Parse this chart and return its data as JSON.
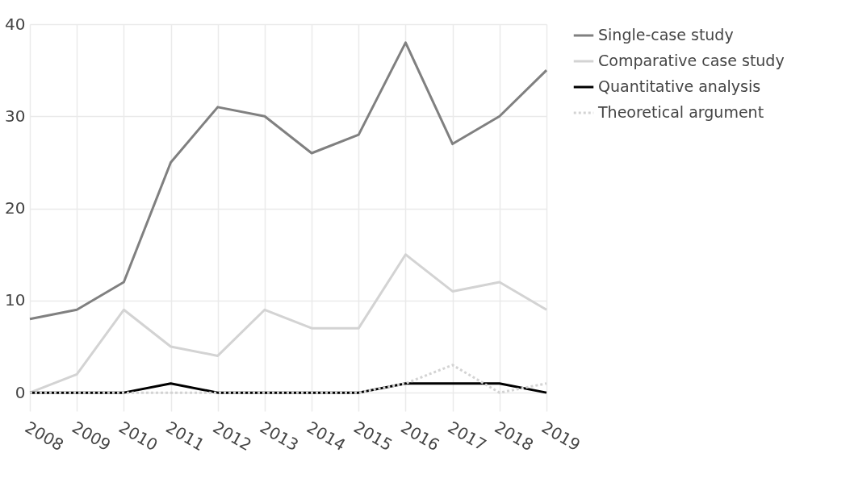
{
  "chart_data": {
    "type": "line",
    "categories": [
      "2008",
      "2009",
      "2010",
      "2011",
      "2012",
      "2013",
      "2014",
      "2015",
      "2016",
      "2017",
      "2018",
      "2019"
    ],
    "series": [
      {
        "name": "Single-case study",
        "color": "#808080",
        "line_style": "solid",
        "values": [
          8,
          9,
          12,
          25,
          31,
          30,
          26,
          28,
          38,
          27,
          30,
          35
        ]
      },
      {
        "name": "Comparative case study",
        "color": "#d3d3d3",
        "line_style": "solid",
        "values": [
          0,
          2,
          9,
          5,
          4,
          9,
          7,
          7,
          15,
          11,
          12,
          9
        ]
      },
      {
        "name": "Quantitative analysis",
        "color": "#000000",
        "line_style": "solid",
        "values": [
          0,
          0,
          0,
          1,
          0,
          0,
          0,
          0,
          1,
          1,
          1,
          0
        ]
      },
      {
        "name": "Theoretical argument",
        "color": "#d3d3d3",
        "line_style": "dotted",
        "values": [
          0,
          0,
          0,
          0,
          0,
          0,
          0,
          0,
          1,
          3,
          0,
          1
        ]
      }
    ],
    "ylim": [
      -2,
      40
    ],
    "yticks": [
      0,
      10,
      20,
      30,
      40
    ],
    "grid": true,
    "legend": "top right",
    "marker": "none"
  }
}
